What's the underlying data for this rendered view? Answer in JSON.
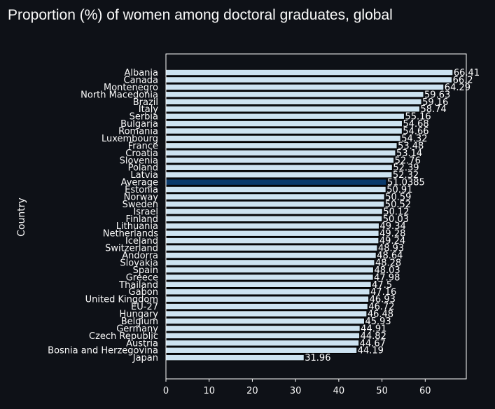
{
  "chart_data": {
    "type": "bar",
    "orientation": "horizontal",
    "title": "Proportion (%) of women among doctoral graduates, global",
    "xlabel": "",
    "ylabel": "Country",
    "xlim": [
      0,
      69.5
    ],
    "xticks": [
      0,
      10,
      20,
      30,
      40,
      50,
      60
    ],
    "grid": false,
    "legend": "none",
    "colors": {
      "background": "#0e1117",
      "bar": "#cde3f1",
      "highlight": "#0b3a6b",
      "edge": "#000000",
      "frame": "#ffffff"
    },
    "highlight_category": "Average",
    "categories": [
      "Albania",
      "Canada",
      "Montenegro",
      "North Macedonia",
      "Brazil",
      "Italy",
      "Serbia",
      "Bulgaria",
      "Romania",
      "Luxembourg",
      "France",
      "Croatia",
      "Slovenia",
      "Poland",
      "Latvia",
      "Average",
      "Estonia",
      "Norway",
      "Sweden",
      "Israel",
      "Finland",
      "Lithuania",
      "Netherlands",
      "Iceland",
      "Switzerland",
      "Andorra",
      "Slovakia",
      "Spain",
      "Greece",
      "Thailand",
      "Gabon",
      "United Kingdom",
      "EU-27",
      "Hungary",
      "Belgium",
      "Germany",
      "Czech Republic",
      "Austria",
      "Bosnia and Herzegovina",
      "Japan"
    ],
    "values": [
      66.41,
      66.2,
      64.29,
      59.63,
      59.16,
      58.74,
      55.16,
      54.68,
      54.66,
      54.32,
      53.48,
      53.14,
      52.76,
      52.39,
      52.32,
      51.0385,
      50.91,
      50.59,
      50.52,
      50.12,
      50.03,
      49.34,
      49.28,
      49.24,
      48.93,
      48.64,
      48.28,
      48.03,
      47.98,
      47.5,
      47.16,
      46.93,
      46.72,
      46.48,
      45.93,
      44.91,
      44.82,
      44.67,
      44.19,
      31.96
    ],
    "value_labels": [
      "66.41",
      "66.2",
      "64.29",
      "59.63",
      "59.16",
      "58.74",
      "55.16",
      "54.68",
      "54.66",
      "54.32",
      "53.48",
      "53.14",
      "52.76",
      "52.39",
      "52.32",
      "51.0385",
      "50.91",
      "50.59",
      "50.52",
      "50.12",
      "50.03",
      "49.34",
      "49.28",
      "49.24",
      "48.93",
      "48.64",
      "48.28",
      "48.03",
      "47.98",
      "47.5",
      "47.16",
      "46.93",
      "46.72",
      "46.48",
      "45.93",
      "44.91",
      "44.82",
      "44.67",
      "44.19",
      "31.96"
    ]
  }
}
